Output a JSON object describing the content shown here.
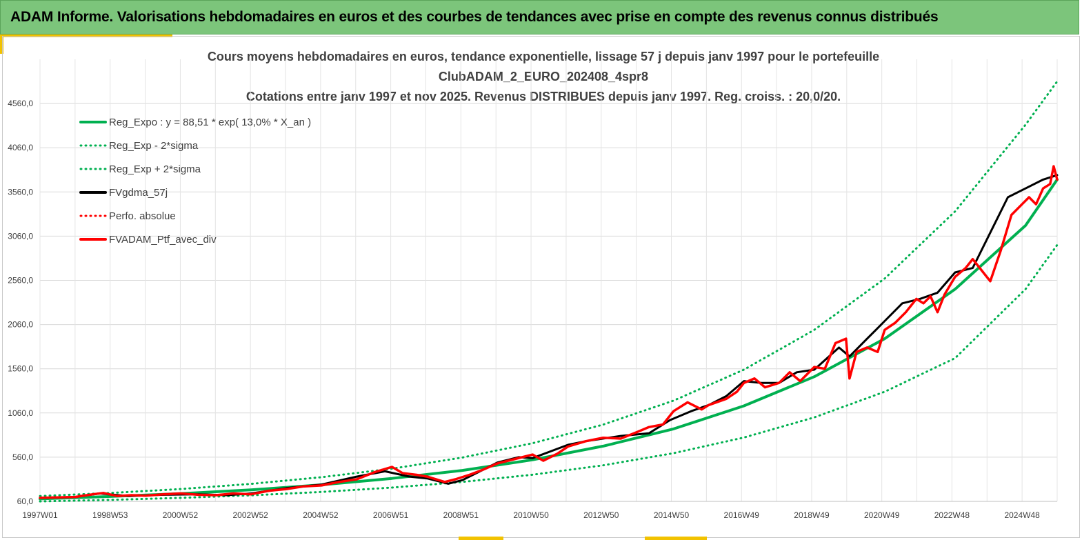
{
  "header": {
    "title": "ADAM Informe. Valorisations hebdomadaires en euros et des courbes de tendances avec prise en compte des revenus connus distribués"
  },
  "colors": {
    "header_bg": "#7cc57b",
    "accent": "#f2c200",
    "trend_green": "#00b050",
    "fv_black": "#000000",
    "portfolio_red": "#ff0000"
  },
  "chart_data": {
    "type": "line",
    "title_lines": [
      "Cours moyens hebdomadaires  en euros, tendance exponentielle, lissage 57 j depuis janv 1997 pour le portefeuille",
      "ClubADAM_2_EURO_202408_4spr8",
      "Cotations  entre janv 1997 et nov 2025. Revenus DISTRIBUES depuis janv 1997. Reg. croiss. : 20,0/20."
    ],
    "x_tick_labels": [
      "1997W01",
      "1998W53",
      "2000W52",
      "2002W52",
      "2004W52",
      "2006W51",
      "2008W51",
      "2010W50",
      "2012W50",
      "2014W50",
      "2016W49",
      "2018W49",
      "2020W49",
      "2022W48",
      "2024W48"
    ],
    "x_range_years": [
      1997.0,
      2025.9
    ],
    "y_tick_values": [
      60,
      560,
      1060,
      1560,
      2060,
      2560,
      3060,
      3560,
      4060,
      4560
    ],
    "y_tick_labels": [
      "60,0",
      "560,0",
      "1060,0",
      "1560,0",
      "2060,0",
      "2560,0",
      "3060,0",
      "3560,0",
      "4060,0",
      "4560,0"
    ],
    "ylim": [
      60,
      5060
    ],
    "grid": true,
    "legend_position": "top-left",
    "legend": [
      {
        "key": "reg",
        "label": "Reg_Expo : y = 88,51 * exp( 13,0% *  X_an )",
        "color": "#00b050",
        "style": "solid"
      },
      {
        "key": "low",
        "label": "Reg_Exp - 2*sigma",
        "color": "#00b050",
        "style": "dotted"
      },
      {
        "key": "high",
        "label": "Reg_Exp + 2*sigma",
        "color": "#00b050",
        "style": "dotted"
      },
      {
        "key": "fv",
        "label": "FVgdma_57j",
        "color": "#000000",
        "style": "solid"
      },
      {
        "key": "perf",
        "label": "Perfo. absolue",
        "color": "#ff0000",
        "style": "dotted"
      },
      {
        "key": "ptf",
        "label": "FVADAM_Ptf_avec_div",
        "color": "#ff0000",
        "style": "solid"
      }
    ],
    "series": [
      {
        "key": "reg",
        "name": "Reg_Expo : y = 88,51 * exp( 13,0% *  X_an )",
        "x": [
          1997.0,
          1999.0,
          2001.0,
          2003.0,
          2005.0,
          2007.0,
          2009.0,
          2011.0,
          2013.0,
          2015.0,
          2017.0,
          2019.0,
          2021.0,
          2023.0,
          2025.0,
          2025.9
        ],
        "y": [
          88,
          115,
          148,
          190,
          247,
          320,
          410,
          530,
          685,
          880,
          1140,
          1470,
          1900,
          2460,
          3180,
          3700
        ]
      },
      {
        "key": "high",
        "name": "Reg_Exp + 2*sigma",
        "x": [
          1997.0,
          1999.0,
          2001.0,
          2003.0,
          2005.0,
          2007.0,
          2009.0,
          2011.0,
          2013.0,
          2015.0,
          2017.0,
          2019.0,
          2021.0,
          2023.0,
          2025.0,
          2025.9
        ],
        "y": [
          120,
          155,
          200,
          258,
          334,
          430,
          556,
          718,
          928,
          1200,
          1550,
          2000,
          2580,
          3340,
          4320,
          4810
        ]
      },
      {
        "key": "low",
        "name": "Reg_Exp - 2*sigma",
        "x": [
          1997.0,
          1999.0,
          2001.0,
          2003.0,
          2005.0,
          2007.0,
          2009.0,
          2011.0,
          2013.0,
          2015.0,
          2017.0,
          2019.0,
          2021.0,
          2023.0,
          2025.0,
          2025.9
        ],
        "y": [
          60,
          77,
          100,
          129,
          167,
          216,
          280,
          362,
          468,
          605,
          782,
          1010,
          1300,
          1680,
          2460,
          2960
        ]
      },
      {
        "key": "fv",
        "name": "FVgdma_57j",
        "x": [
          1997.0,
          1998.0,
          1998.7,
          1999.5,
          2000.5,
          2001.5,
          2002.3,
          2003.0,
          2004.0,
          2005.0,
          2006.0,
          2006.8,
          2007.5,
          2008.0,
          2008.6,
          2009.0,
          2010.0,
          2010.6,
          2011.0,
          2012.0,
          2012.5,
          2013.5,
          2014.3,
          2014.9,
          2015.5,
          2016.0,
          2016.5,
          2017.0,
          2017.5,
          2018.0,
          2018.5,
          2019.0,
          2019.7,
          2020.0,
          2020.5,
          2021.0,
          2021.5,
          2022.0,
          2022.5,
          2023.0,
          2023.5,
          2024.0,
          2024.5,
          2025.0,
          2025.5,
          2025.9
        ],
        "y": [
          100,
          110,
          150,
          120,
          135,
          140,
          130,
          150,
          210,
          250,
          340,
          400,
          340,
          320,
          260,
          300,
          500,
          560,
          550,
          700,
          740,
          800,
          830,
          980,
          1080,
          1150,
          1250,
          1420,
          1400,
          1400,
          1520,
          1550,
          1800,
          1700,
          1900,
          2100,
          2300,
          2350,
          2420,
          2650,
          2700,
          3100,
          3500,
          3600,
          3700,
          3750
        ]
      },
      {
        "key": "ptf",
        "name": "FVADAM_Ptf_avec_div",
        "x": [
          1997.0,
          1997.5,
          1998.0,
          1998.5,
          1998.8,
          1999.2,
          1999.6,
          2000.0,
          2000.5,
          2001.0,
          2001.5,
          2002.0,
          2002.5,
          2003.0,
          2003.5,
          2004.0,
          2004.5,
          2005.0,
          2005.5,
          2006.0,
          2006.5,
          2007.0,
          2007.3,
          2007.7,
          2008.0,
          2008.5,
          2008.8,
          2009.2,
          2009.6,
          2010.0,
          2010.5,
          2011.0,
          2011.3,
          2011.7,
          2012.0,
          2012.5,
          2013.0,
          2013.5,
          2014.0,
          2014.3,
          2014.7,
          2015.0,
          2015.4,
          2015.8,
          2016.0,
          2016.5,
          2016.8,
          2017.0,
          2017.3,
          2017.6,
          2018.0,
          2018.3,
          2018.6,
          2019.0,
          2019.3,
          2019.6,
          2019.9,
          2020.0,
          2020.2,
          2020.5,
          2020.8,
          2021.0,
          2021.3,
          2021.6,
          2021.9,
          2022.1,
          2022.3,
          2022.5,
          2022.7,
          2023.0,
          2023.3,
          2023.5,
          2023.8,
          2024.0,
          2024.3,
          2024.6,
          2024.9,
          2025.1,
          2025.3,
          2025.5,
          2025.7,
          2025.8,
          2025.9
        ],
        "y": [
          100,
          105,
          110,
          140,
          155,
          120,
          130,
          125,
          140,
          150,
          135,
          130,
          150,
          140,
          180,
          200,
          230,
          240,
          280,
          310,
          390,
          450,
          380,
          360,
          340,
          280,
          310,
          360,
          420,
          490,
          540,
          590,
          520,
          600,
          680,
          740,
          780,
          770,
          850,
          900,
          930,
          1080,
          1180,
          1100,
          1150,
          1220,
          1300,
          1400,
          1450,
          1350,
          1400,
          1520,
          1420,
          1580,
          1560,
          1850,
          1900,
          1450,
          1750,
          1800,
          1750,
          2000,
          2080,
          2200,
          2350,
          2300,
          2380,
          2200,
          2400,
          2600,
          2700,
          2800,
          2650,
          2550,
          2900,
          3300,
          3420,
          3500,
          3420,
          3600,
          3650,
          3850,
          3700
        ]
      }
    ]
  }
}
